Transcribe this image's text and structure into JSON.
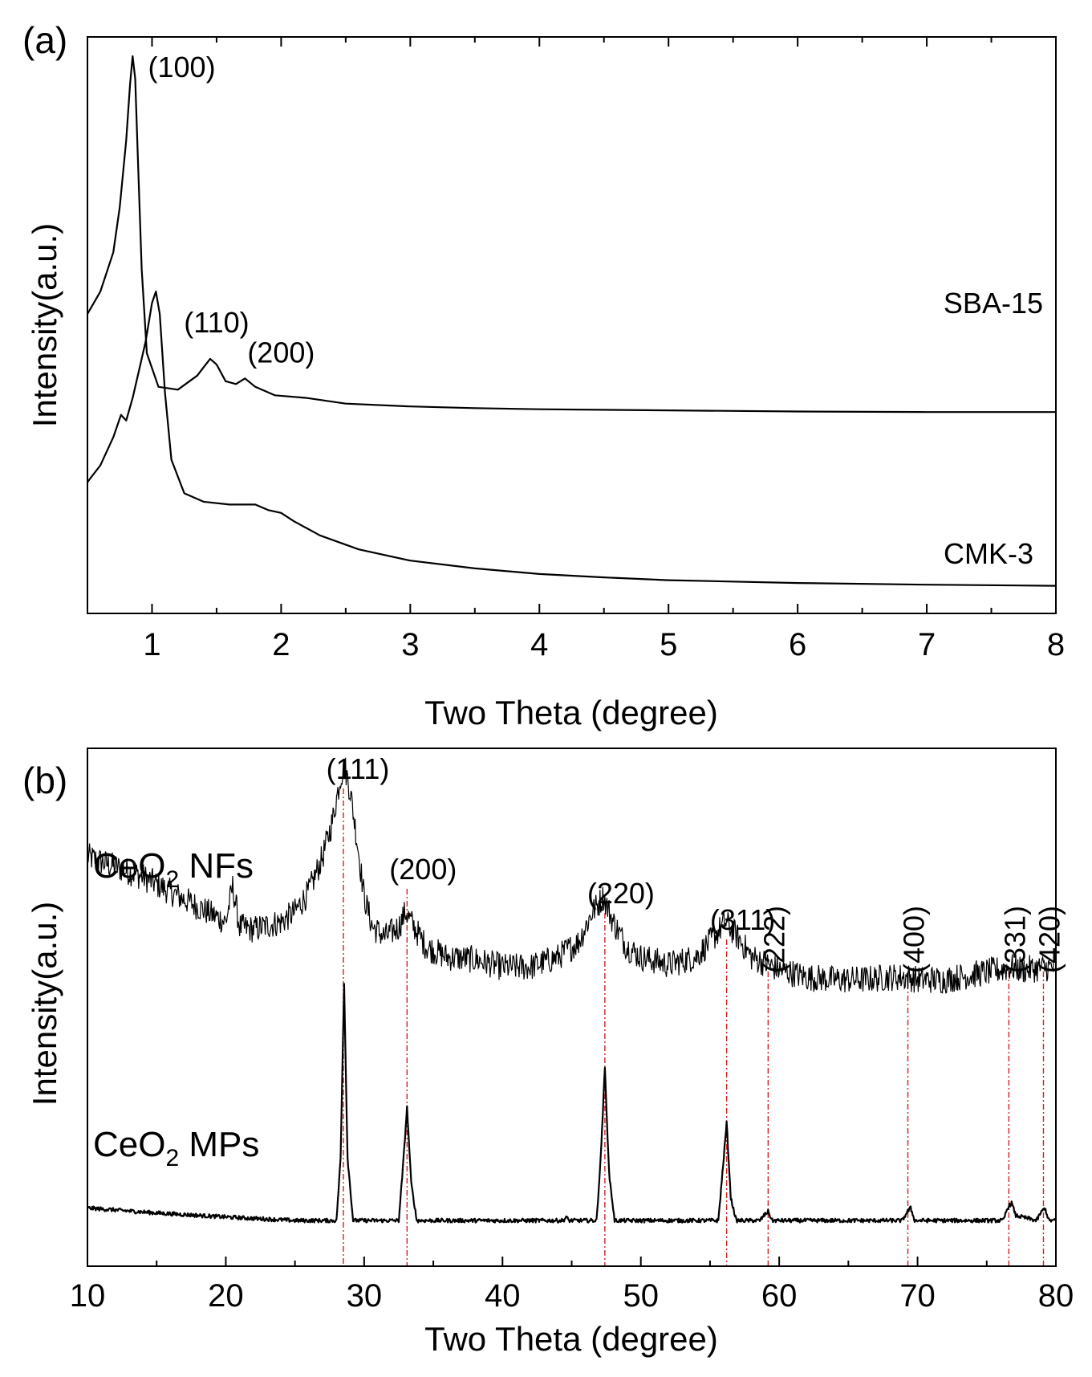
{
  "chart_data": [
    {
      "panel_label": "(a)",
      "type": "line",
      "xlabel": "Two Theta (degree)",
      "ylabel": "Intensity(a.u.)",
      "xlim": [
        0.5,
        8
      ],
      "xticks": [
        1,
        2,
        3,
        4,
        5,
        6,
        7,
        8
      ],
      "y_ticks_shown": false,
      "series": [
        {
          "name": "SBA-15",
          "x": [
            0.5,
            0.6,
            0.7,
            0.75,
            0.8,
            0.83,
            0.85,
            0.87,
            0.89,
            0.92,
            0.96,
            1.05,
            1.2,
            1.35,
            1.45,
            1.5,
            1.57,
            1.65,
            1.72,
            1.8,
            1.95,
            2.2,
            2.5,
            3,
            3.5,
            4,
            5,
            6,
            7,
            8
          ],
          "y": [
            0.52,
            0.56,
            0.63,
            0.71,
            0.83,
            0.93,
            0.98,
            0.94,
            0.8,
            0.6,
            0.45,
            0.39,
            0.385,
            0.41,
            0.44,
            0.43,
            0.4,
            0.395,
            0.405,
            0.39,
            0.375,
            0.37,
            0.36,
            0.355,
            0.352,
            0.35,
            0.348,
            0.346,
            0.345,
            0.345
          ],
          "peak_labels": [
            {
              "label": "(100)",
              "x": 0.87
            },
            {
              "label": "(110)",
              "x": 1.5
            },
            {
              "label": "(200)",
              "x": 1.72
            }
          ]
        },
        {
          "name": "CMK-3",
          "x": [
            0.5,
            0.6,
            0.7,
            0.76,
            0.8,
            0.85,
            0.9,
            0.95,
            1.0,
            1.03,
            1.06,
            1.1,
            1.15,
            1.25,
            1.4,
            1.6,
            1.8,
            1.9,
            2.0,
            2.1,
            2.3,
            2.6,
            3,
            3.5,
            4,
            4.5,
            5,
            6,
            7,
            8
          ],
          "y": [
            0.22,
            0.25,
            0.3,
            0.34,
            0.33,
            0.37,
            0.42,
            0.47,
            0.54,
            0.56,
            0.52,
            0.38,
            0.26,
            0.2,
            0.185,
            0.18,
            0.18,
            0.17,
            0.165,
            0.15,
            0.125,
            0.1,
            0.08,
            0.066,
            0.056,
            0.05,
            0.045,
            0.04,
            0.037,
            0.035
          ]
        }
      ]
    },
    {
      "panel_label": "(b)",
      "type": "line",
      "xlabel": "Two Theta (degree)",
      "ylabel": "Intensity(a.u.)",
      "xlim": [
        10,
        80
      ],
      "xticks": [
        10,
        20,
        30,
        40,
        50,
        60,
        70,
        80
      ],
      "y_ticks_shown": false,
      "noisy_trace": true,
      "series": [
        {
          "name": "CeO₂ NFs",
          "label_main": "CeO",
          "label_sub": "2",
          "label_tail": " NFs",
          "x": [
            10,
            12,
            14,
            16,
            18,
            20,
            20.5,
            21,
            22,
            24,
            25,
            26,
            27,
            27.7,
            28.3,
            28.6,
            29,
            29.5,
            30,
            30.6,
            31.5,
            32.5,
            33,
            33.6,
            34.5,
            36,
            38,
            40,
            42,
            44,
            45.5,
            46.5,
            47.3,
            48,
            49,
            50,
            52,
            54,
            55.3,
            56.1,
            57,
            58,
            59.2,
            60,
            62,
            64,
            66,
            68,
            69.3,
            70,
            72,
            74,
            76,
            76.8,
            77.5,
            79,
            80
          ],
          "y": [
            0.8,
            0.78,
            0.76,
            0.73,
            0.7,
            0.67,
            0.74,
            0.66,
            0.655,
            0.67,
            0.69,
            0.73,
            0.8,
            0.87,
            0.96,
            0.98,
            0.93,
            0.83,
            0.72,
            0.66,
            0.64,
            0.66,
            0.69,
            0.66,
            0.62,
            0.6,
            0.595,
            0.58,
            0.58,
            0.6,
            0.63,
            0.69,
            0.72,
            0.67,
            0.62,
            0.6,
            0.585,
            0.6,
            0.64,
            0.67,
            0.64,
            0.6,
            0.585,
            0.575,
            0.56,
            0.555,
            0.555,
            0.56,
            0.56,
            0.555,
            0.555,
            0.565,
            0.575,
            0.58,
            0.575,
            0.578,
            0.58
          ]
        },
        {
          "name": "CeO₂ MPs",
          "label_main": "CeO",
          "label_sub": "2",
          "label_tail": " MPs",
          "x": [
            10,
            15,
            20,
            25,
            28.0,
            28.3,
            28.55,
            28.8,
            29.2,
            32.5,
            32.8,
            33.1,
            33.4,
            33.8,
            44.4,
            44.6,
            44.8,
            46.8,
            47.1,
            47.4,
            47.7,
            48.1,
            55.6,
            55.9,
            56.2,
            56.5,
            56.9,
            58.6,
            58.9,
            59.2,
            59.5,
            68.9,
            69.2,
            69.5,
            69.8,
            76.2,
            76.5,
            76.8,
            77.1,
            78.6,
            78.9,
            79.2,
            79.5,
            80
          ],
          "y": [
            0.1,
            0.09,
            0.082,
            0.075,
            0.075,
            0.2,
            0.55,
            0.2,
            0.075,
            0.075,
            0.18,
            0.3,
            0.15,
            0.075,
            0.075,
            0.082,
            0.075,
            0.075,
            0.2,
            0.38,
            0.17,
            0.075,
            0.075,
            0.17,
            0.27,
            0.12,
            0.075,
            0.075,
            0.085,
            0.093,
            0.075,
            0.075,
            0.09,
            0.1,
            0.075,
            0.075,
            0.1,
            0.11,
            0.085,
            0.075,
            0.09,
            0.1,
            0.075,
            0.075
          ]
        }
      ],
      "reference_lines": [
        {
          "label": "(111)",
          "x": 28.5,
          "rotated": false
        },
        {
          "label": "(200)",
          "x": 33.1,
          "rotated": false
        },
        {
          "label": "(220)",
          "x": 47.4,
          "rotated": false
        },
        {
          "label": "(311)",
          "x": 56.2,
          "rotated": false
        },
        {
          "label": "(222)",
          "x": 59.2,
          "rotated": true
        },
        {
          "label": "(400)",
          "x": 69.3,
          "rotated": true
        },
        {
          "label": "(331)",
          "x": 76.6,
          "rotated": true
        },
        {
          "label": "(420)",
          "x": 79.1,
          "rotated": true
        }
      ],
      "reference_line_color": "#d22020"
    }
  ]
}
